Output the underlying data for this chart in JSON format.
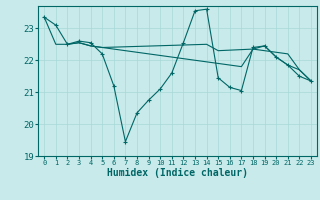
{
  "title": "",
  "xlabel": "Humidex (Indice chaleur)",
  "bg_color": "#c8eaea",
  "grid_color": "#a8d8d8",
  "line_color": "#006666",
  "xlim": [
    -0.5,
    23.5
  ],
  "ylim": [
    19.0,
    23.7
  ],
  "yticks": [
    19,
    20,
    21,
    22,
    23
  ],
  "xticks": [
    0,
    1,
    2,
    3,
    4,
    5,
    6,
    7,
    8,
    9,
    10,
    11,
    12,
    13,
    14,
    15,
    16,
    17,
    18,
    19,
    20,
    21,
    22,
    23
  ],
  "series1_x": [
    0,
    1,
    2,
    3,
    4,
    5,
    6,
    7,
    8,
    9,
    10,
    11,
    12,
    13,
    14,
    15,
    16,
    17,
    18,
    19,
    20,
    21,
    22,
    23
  ],
  "series1_y": [
    23.35,
    23.1,
    22.5,
    22.6,
    22.55,
    22.2,
    21.2,
    19.45,
    20.35,
    20.75,
    21.1,
    21.6,
    22.55,
    23.55,
    23.6,
    21.45,
    21.15,
    21.05,
    22.4,
    22.45,
    22.1,
    21.85,
    21.5,
    21.35
  ],
  "series2_x": [
    0,
    1,
    2,
    3,
    4,
    5,
    6,
    7,
    8,
    9,
    10,
    11,
    12,
    13,
    14,
    15,
    16,
    17,
    18,
    19,
    20,
    21,
    22,
    23
  ],
  "series2_y": [
    23.35,
    22.5,
    22.5,
    22.55,
    22.45,
    22.4,
    22.35,
    22.3,
    22.25,
    22.2,
    22.15,
    22.1,
    22.05,
    22.0,
    21.95,
    21.9,
    21.85,
    21.8,
    22.35,
    22.3,
    22.25,
    22.2,
    21.7,
    21.35
  ],
  "series3_x": [
    2,
    3,
    4,
    5,
    14,
    15,
    18,
    19,
    20,
    21,
    22,
    23
  ],
  "series3_y": [
    22.5,
    22.55,
    22.45,
    22.4,
    22.5,
    22.3,
    22.35,
    22.45,
    22.1,
    21.85,
    21.7,
    21.35
  ]
}
